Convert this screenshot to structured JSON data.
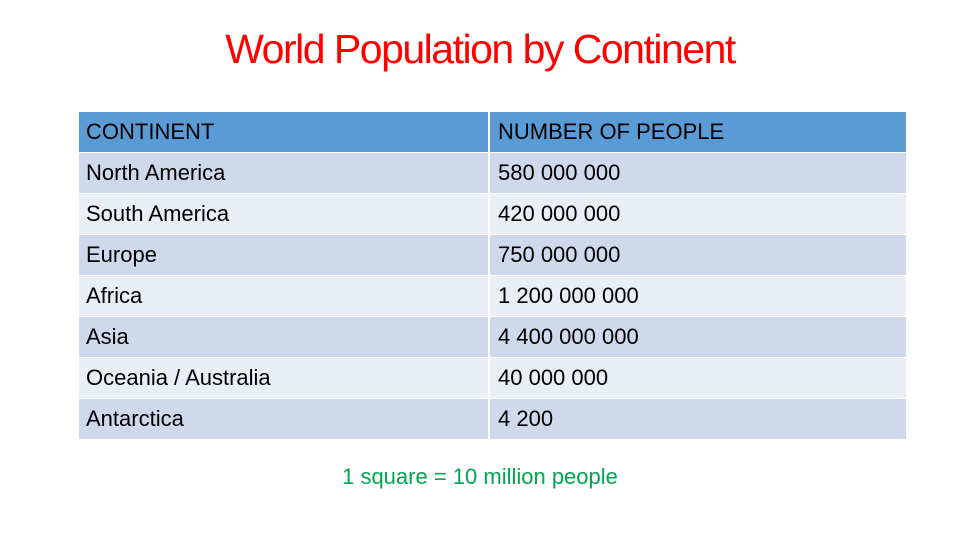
{
  "title": "World Population by Continent",
  "table": {
    "headers": [
      "CONTINENT",
      "NUMBER OF PEOPLE"
    ],
    "rows": [
      [
        "North America",
        "580 000 000"
      ],
      [
        "South America",
        "420 000 000"
      ],
      [
        "Europe",
        "750 000 000"
      ],
      [
        "Africa",
        "1 200 000 000"
      ],
      [
        "Asia",
        "4 400 000 000"
      ],
      [
        "Oceania / Australia",
        "40 000 000"
      ],
      [
        "Antarctica",
        "4 200"
      ]
    ]
  },
  "note": "1 square = 10 million people",
  "colors": {
    "title": "#ff0000",
    "header_bg": "#5b9bd5",
    "row_bg": "#cfd9ec",
    "row_alt_bg": "#e9eef7",
    "note": "#00a651"
  }
}
